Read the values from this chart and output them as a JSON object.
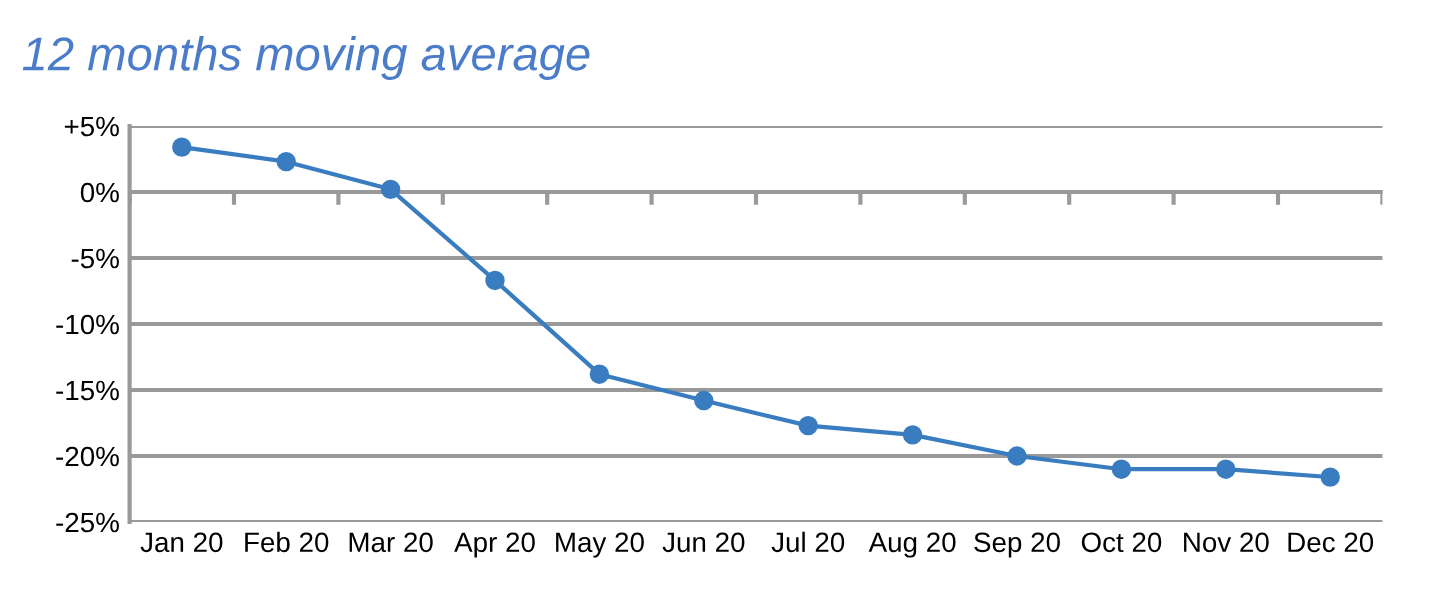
{
  "chart_data": {
    "type": "line",
    "title": "12 months moving average",
    "categories": [
      "Jan 20",
      "Feb 20",
      "Mar 20",
      "Apr 20",
      "May 20",
      "Jun 20",
      "Jul 20",
      "Aug 20",
      "Sep 20",
      "Oct 20",
      "Nov 20",
      "Dec 20"
    ],
    "series": [
      {
        "color": "#3a7cc0",
        "values": [
          3.4,
          2.3,
          0.2,
          -6.7,
          -13.8,
          -15.8,
          -17.7,
          -18.4,
          -20.0,
          -21.0,
          -21.0,
          -21.6
        ]
      }
    ],
    "ylim": [
      -25,
      5
    ],
    "yticks": [
      {
        "value": 5,
        "label": "+5%"
      },
      {
        "value": 0,
        "label": "0%"
      },
      {
        "value": -5,
        "label": "-5%"
      },
      {
        "value": -10,
        "label": "-10%"
      },
      {
        "value": -15,
        "label": "-15%"
      },
      {
        "value": -20,
        "label": "-20%"
      },
      {
        "value": -25,
        "label": "-25%"
      }
    ],
    "grid": "y",
    "marker": "circle",
    "line_style": "solid",
    "legend": false
  }
}
